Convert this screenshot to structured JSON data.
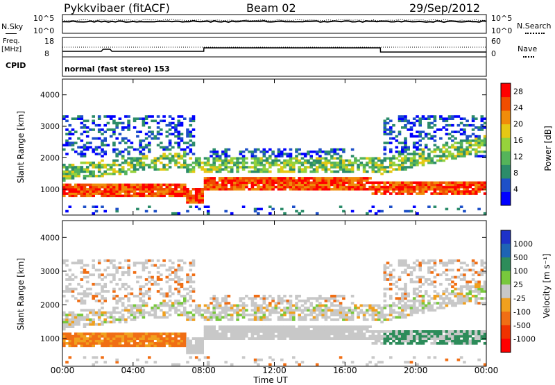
{
  "header": {
    "station": "Pykkvibaer (fitACF)",
    "beam": "Beam 02",
    "date": "29/Sep/2012"
  },
  "strips": {
    "nsky": {
      "left_label": "N.Sky",
      "right_label": "N.Search",
      "left_ticks": [
        "10^5",
        "10^0"
      ],
      "right_ticks": [
        "10^5",
        "10^0"
      ]
    },
    "freq": {
      "left_label_1": "Freq.",
      "left_label_2": "[MHz]",
      "right_label": "Nave",
      "left_ticks": [
        "18",
        "8"
      ],
      "right_ticks": [
        "60",
        "0"
      ]
    },
    "cpid": {
      "label": "CPID",
      "text": "normal (fast stereo) 153"
    }
  },
  "chart_data": [
    {
      "type": "heatmap",
      "name": "power-panel",
      "ylabel": "Slant Range [km]",
      "yticks": [
        "1000",
        "2000",
        "3000",
        "4000"
      ],
      "ylim": [
        180,
        4500
      ],
      "colorbar_label": "Power [dB]",
      "colorbar_ticks": [
        "4",
        "8",
        "12",
        "16",
        "20",
        "24",
        "28"
      ],
      "colorbar_range": [
        0,
        30
      ],
      "colors": [
        "#0000ff",
        "#1e50c8",
        "#2c8c6a",
        "#55b45a",
        "#96d23c",
        "#e6c814",
        "#f08c0a",
        "#f04d00",
        "#ff0000"
      ]
    },
    {
      "type": "heatmap",
      "name": "velocity-panel",
      "ylabel": "Slant Range [km]",
      "yticks": [
        "1000",
        "2000",
        "3000",
        "4000"
      ],
      "ylim": [
        180,
        4500
      ],
      "colorbar_label": "Velocity [m s⁻¹]",
      "colorbar_ticks": [
        "1000",
        "500",
        "100",
        "25",
        "-25",
        "-100",
        "-500",
        "-1000"
      ],
      "colors": [
        "#1e32c8",
        "#1e64b4",
        "#2d8c5a",
        "#78c83c",
        "#c8c8c8",
        "#f0a01e",
        "#f06e14",
        "#f03200",
        "#ff0000"
      ]
    }
  ],
  "xaxis": {
    "ticks": [
      "00:00",
      "04:00",
      "08:00",
      "12:00",
      "16:00",
      "20:00",
      "00:00"
    ],
    "label": "Time UT",
    "xlim_hours": [
      0,
      24
    ]
  }
}
